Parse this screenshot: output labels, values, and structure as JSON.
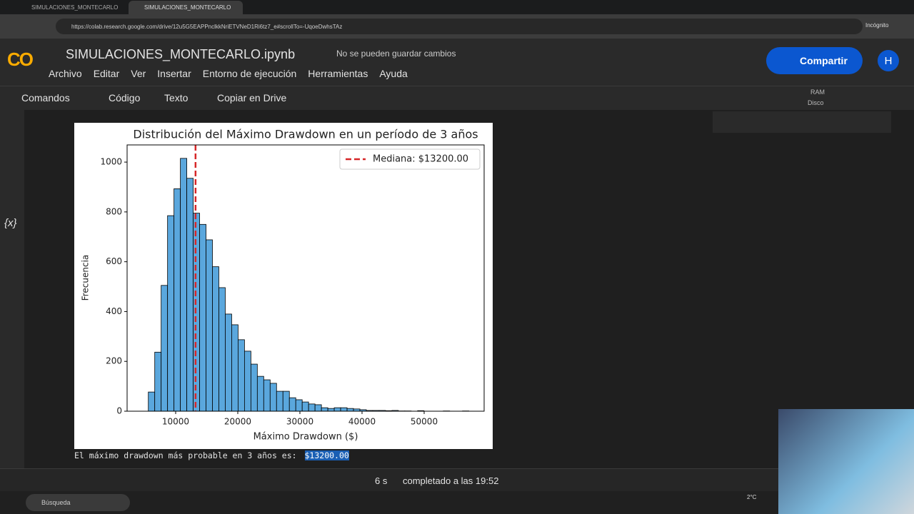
{
  "browser": {
    "tabs": [
      "SIMULACIONES_MONTECARLO",
      "SIMULACIONES_MONTECARLO"
    ],
    "url": "https://colab.research.google.com/drive/12u5G5EAPPnclkkNriETVNeD1Ri6tz7_e#scrollTo=-UqoeDwhsTAz",
    "profile": "Incógnito"
  },
  "header": {
    "logo": "CO",
    "filename": "SIMULACIONES_MONTECARLO.ipynb",
    "save_status": "No se pueden guardar cambios",
    "share": "Compartir",
    "avatar": "H",
    "menu": [
      "Archivo",
      "Editar",
      "Ver",
      "Insertar",
      "Entorno de ejecución",
      "Herramientas",
      "Ayuda"
    ]
  },
  "toolbar": {
    "commands": "Comandos",
    "code": "Código",
    "text": "Texto",
    "copy": "Copiar en Drive",
    "ram": "RAM",
    "disk": "Disco"
  },
  "sidebar": {
    "variables": "{x}"
  },
  "chart_data": {
    "type": "histogram",
    "title": "Distribución del Máximo Drawdown en un período de 3 años",
    "xlabel": "Máximo Drawdown ($)",
    "ylabel": "Frecuencia",
    "color": "#5aa7dd",
    "edgecolor": "#000000",
    "bins": [
      5600,
      6632,
      7664,
      8696,
      9728,
      10760,
      11792,
      12824,
      13856,
      14888,
      15920,
      16952,
      17984,
      19016,
      20048,
      21080,
      22112,
      23144,
      24176,
      25208,
      26240,
      27272,
      28304,
      29336,
      30368,
      31400,
      32432,
      33464,
      34496,
      35528,
      36560,
      37592,
      38624,
      39656,
      40688,
      41720,
      42752,
      43784,
      44816,
      45848,
      46880,
      47912,
      48944,
      49976,
      51008,
      52040,
      53072,
      54104,
      55136,
      56168,
      57200
    ],
    "values": [
      77,
      237,
      505,
      785,
      893,
      1015,
      935,
      795,
      750,
      688,
      580,
      496,
      390,
      347,
      287,
      241,
      189,
      140,
      126,
      112,
      80,
      80,
      54,
      46,
      37,
      29,
      26,
      14,
      11,
      14,
      14,
      11,
      9,
      6,
      3,
      3,
      3,
      2,
      3,
      1,
      1,
      0,
      2,
      0,
      0,
      0,
      1,
      0,
      0,
      1
    ],
    "xlim": [
      2184,
      59655
    ],
    "ylim": [
      0,
      1069
    ],
    "xticks": [
      10000,
      20000,
      30000,
      40000,
      50000
    ],
    "yticks": [
      0,
      200,
      400,
      600,
      800,
      1000
    ],
    "median": {
      "label": "Mediana: $13200.00",
      "value": 13200,
      "color": "#d62728"
    },
    "legend": "upper right"
  },
  "output": {
    "text": "El máximo drawdown más probable en 3 años es:",
    "highlight": "$13200.00"
  },
  "status": {
    "duration": "6 s",
    "completed": "completado a las 19:52"
  },
  "taskbar": {
    "search": "Búsqueda",
    "weather": "2°C"
  }
}
